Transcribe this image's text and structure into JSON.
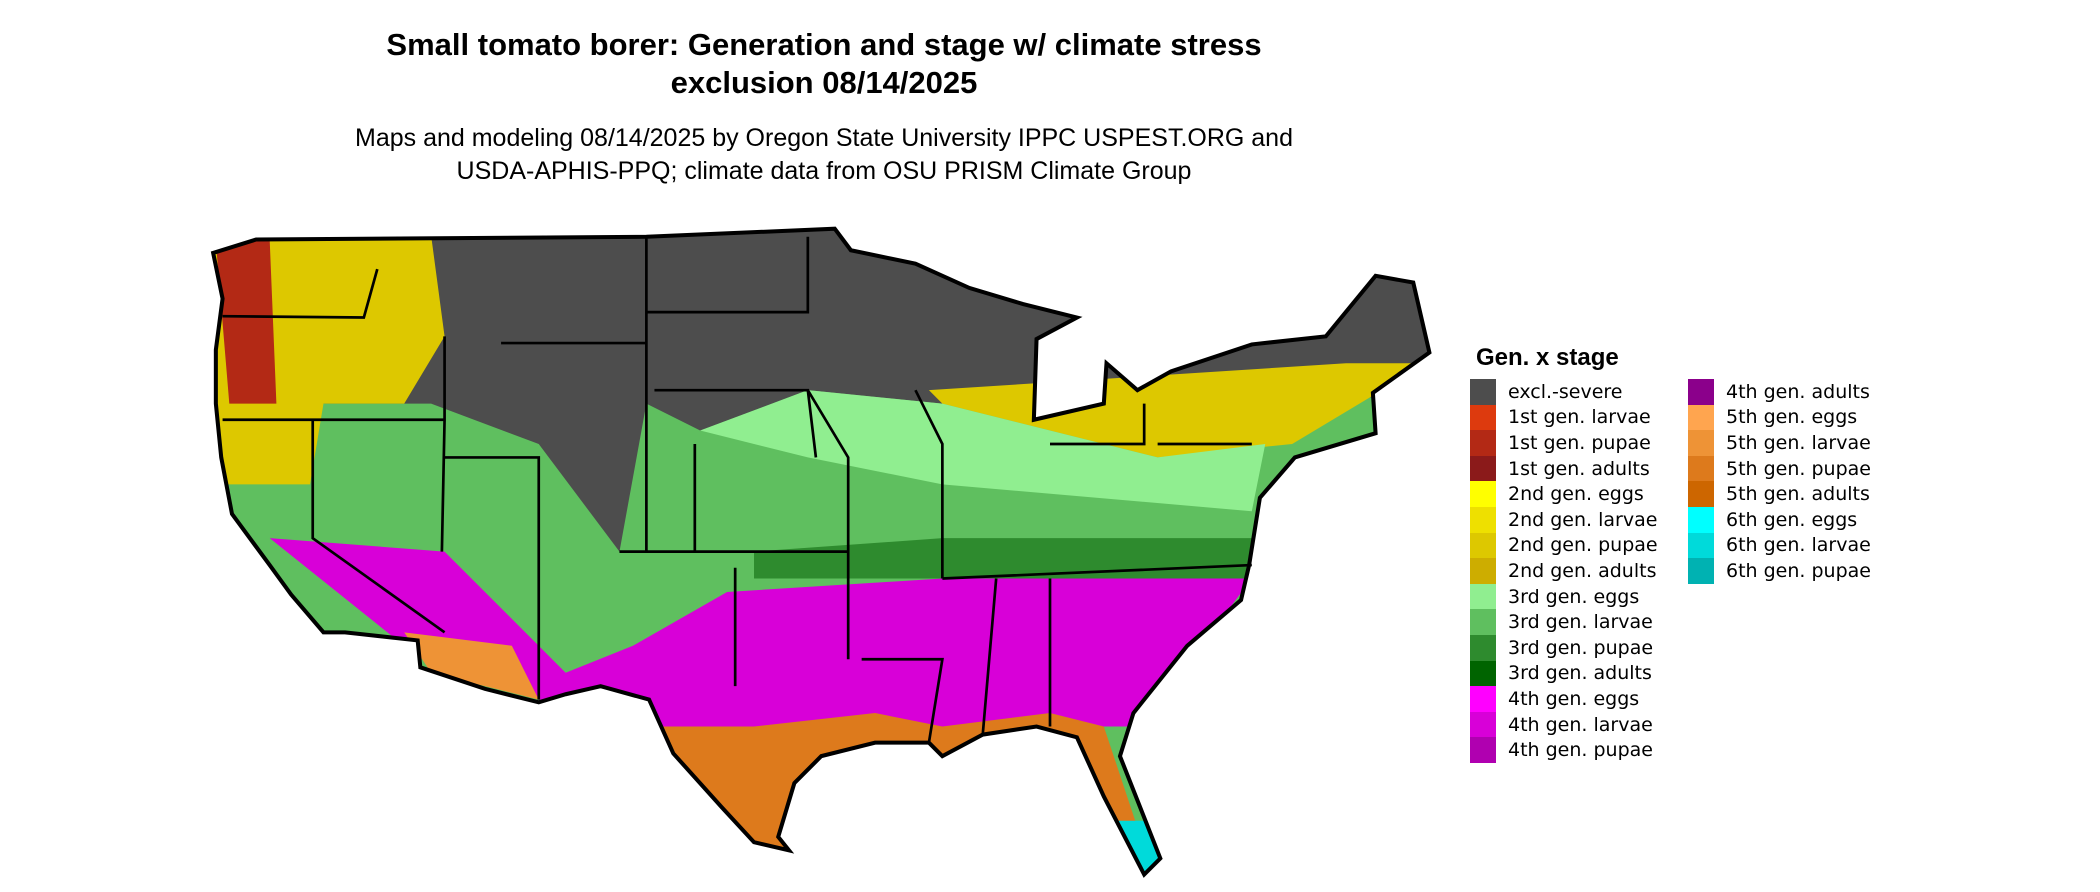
{
  "title": [
    "Small tomato borer: Generation and stage w/ climate stress",
    "exclusion 08/14/2025"
  ],
  "subtitle": [
    "Maps and modeling 08/14/2025 by Oregon State University IPPC USPEST.ORG and",
    "USDA-APHIS-PPQ; climate data from OSU PRISM Climate Group"
  ],
  "legend": {
    "title": "Gen. x stage",
    "items": [
      {
        "label": "excl.-severe",
        "color": "#4d4d4d"
      },
      {
        "label": "1st gen. larvae",
        "color": "#dd3a0e"
      },
      {
        "label": "1st gen. pupae",
        "color": "#b32915"
      },
      {
        "label": "1st gen. adults",
        "color": "#8b1a1a"
      },
      {
        "label": "2nd gen. eggs",
        "color": "#ffff00"
      },
      {
        "label": "2nd gen. larvae",
        "color": "#eee000"
      },
      {
        "label": "2nd gen. pupae",
        "color": "#ddc800"
      },
      {
        "label": "2nd gen. adults",
        "color": "#cdad00"
      },
      {
        "label": "3rd gen. eggs",
        "color": "#90ee90"
      },
      {
        "label": "3rd gen. larvae",
        "color": "#5fbf5f"
      },
      {
        "label": "3rd gen. pupae",
        "color": "#2e8b2e"
      },
      {
        "label": "3rd gen. adults",
        "color": "#006400"
      },
      {
        "label": "4th gen. eggs",
        "color": "#ff00ff"
      },
      {
        "label": "4th gen. larvae",
        "color": "#d800d8"
      },
      {
        "label": "4th gen. pupae",
        "color": "#b000b0"
      },
      {
        "label": "4th gen. adults",
        "color": "#8b008b"
      },
      {
        "label": "5th gen. eggs",
        "color": "#ffa54f"
      },
      {
        "label": "5th gen. larvae",
        "color": "#ee9336"
      },
      {
        "label": "5th gen. pupae",
        "color": "#dd7a1c"
      },
      {
        "label": "5th gen. adults",
        "color": "#cd6600"
      },
      {
        "label": "6th gen. eggs",
        "color": "#00ffff"
      },
      {
        "label": "6th gen. larvae",
        "color": "#00dada"
      },
      {
        "label": "6th gen. pupae",
        "color": "#00b2b2"
      }
    ]
  }
}
